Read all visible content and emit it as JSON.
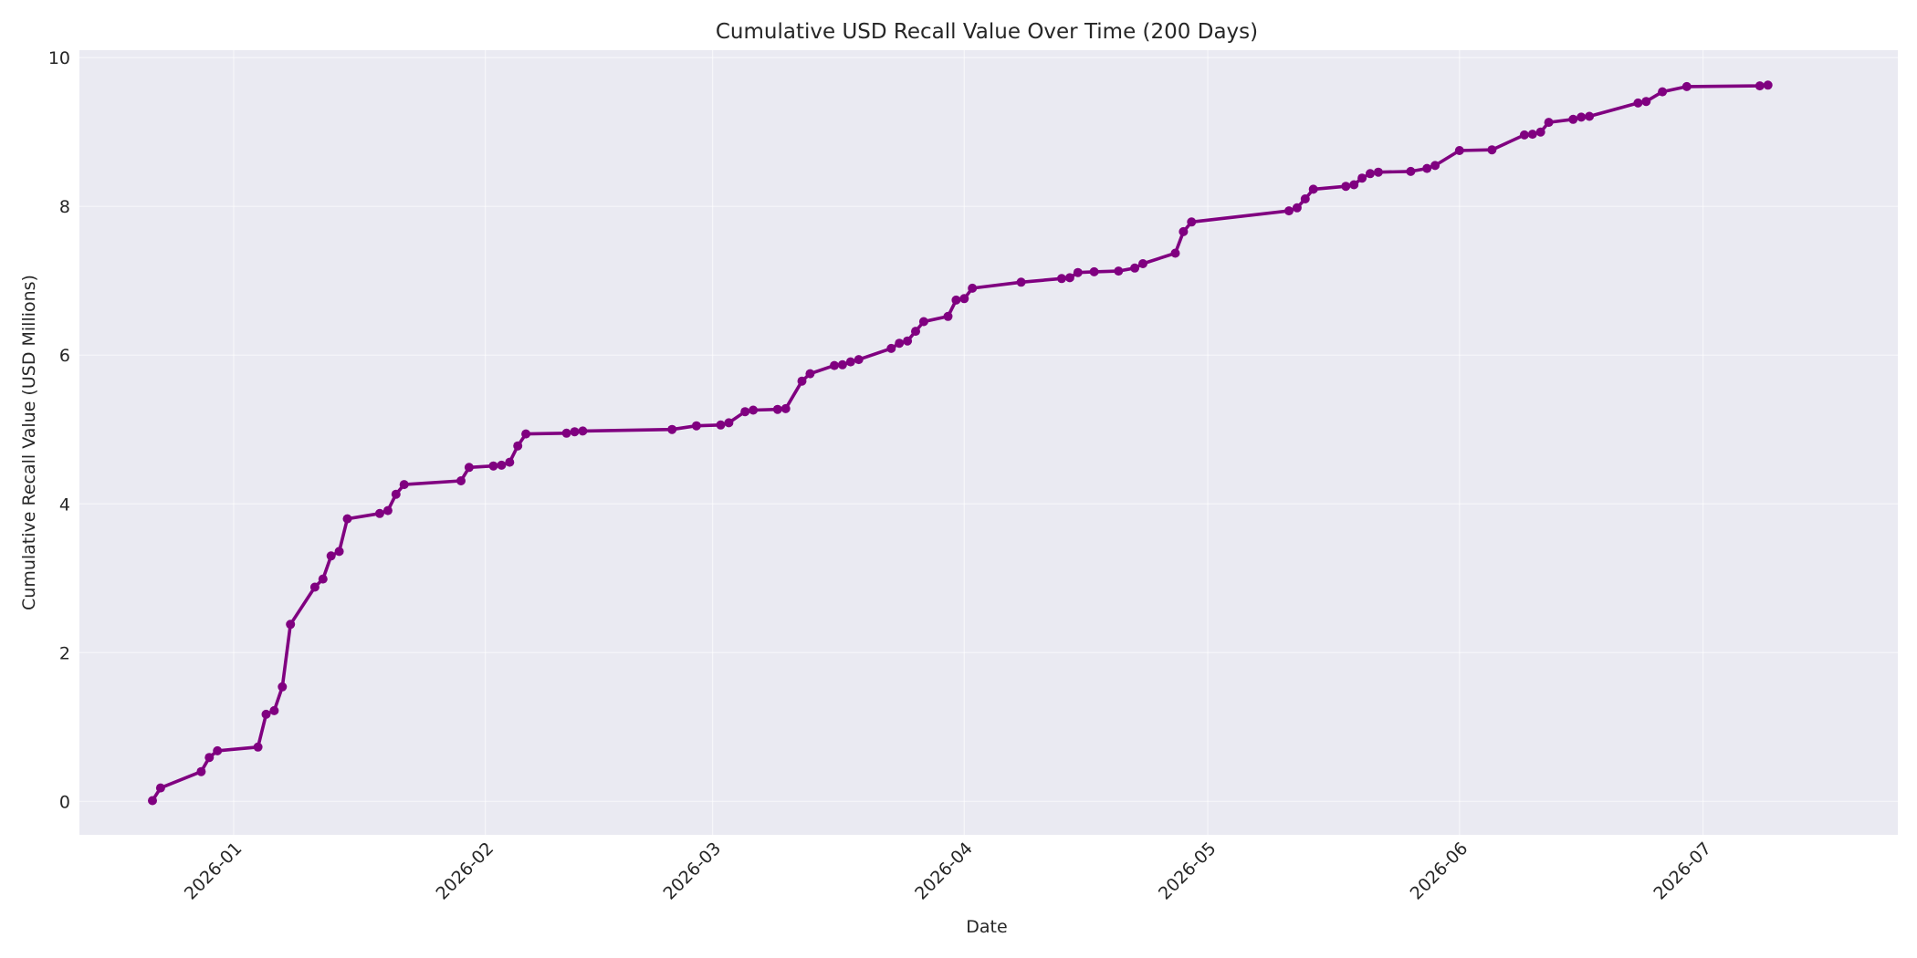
{
  "chart_data": {
    "type": "line",
    "title": "Cumulative USD Recall Value Over Time (200 Days)",
    "xlabel": "Date",
    "ylabel": "Cumulative Recall Value (USD Millions)",
    "xlim": [
      "2025-12-13",
      "2026-07-25"
    ],
    "ylim": [
      -0.45,
      10.1
    ],
    "x_ticks": [
      "2026-01-01",
      "2026-02-01",
      "2026-03-01",
      "2026-04-01",
      "2026-05-01",
      "2026-06-01",
      "2026-07-01"
    ],
    "x_tick_labels": [
      "2026-01",
      "2026-02",
      "2026-03",
      "2026-04",
      "2026-05",
      "2026-06",
      "2026-07"
    ],
    "y_ticks": [
      0,
      2,
      4,
      6,
      8,
      10
    ],
    "y_tick_labels": [
      "0",
      "2",
      "4",
      "6",
      "8",
      "10"
    ],
    "grid": true,
    "colors": {
      "series": "#800080",
      "plot_background": "#EAEAF2",
      "grid": "#FFFFFF"
    },
    "series": [
      {
        "marker": "circle",
        "x": [
          "2025-12-22",
          "2025-12-23",
          "2025-12-28",
          "2025-12-29",
          "2025-12-30",
          "2026-01-04",
          "2026-01-05",
          "2026-01-06",
          "2026-01-07",
          "2026-01-08",
          "2026-01-11",
          "2026-01-12",
          "2026-01-13",
          "2026-01-14",
          "2026-01-15",
          "2026-01-19",
          "2026-01-20",
          "2026-01-21",
          "2026-01-22",
          "2026-01-29",
          "2026-01-30",
          "2026-02-02",
          "2026-02-03",
          "2026-02-04",
          "2026-02-05",
          "2026-02-06",
          "2026-02-11",
          "2026-02-12",
          "2026-02-13",
          "2026-02-24",
          "2026-02-27",
          "2026-03-02",
          "2026-03-03",
          "2026-03-05",
          "2026-03-06",
          "2026-03-09",
          "2026-03-10",
          "2026-03-12",
          "2026-03-13",
          "2026-03-16",
          "2026-03-17",
          "2026-03-18",
          "2026-03-19",
          "2026-03-23",
          "2026-03-24",
          "2026-03-25",
          "2026-03-26",
          "2026-03-27",
          "2026-03-30",
          "2026-03-31",
          "2026-04-01",
          "2026-04-02",
          "2026-04-08",
          "2026-04-13",
          "2026-04-14",
          "2026-04-15",
          "2026-04-17",
          "2026-04-20",
          "2026-04-22",
          "2026-04-23",
          "2026-04-27",
          "2026-04-28",
          "2026-04-29",
          "2026-05-11",
          "2026-05-12",
          "2026-05-13",
          "2026-05-14",
          "2026-05-18",
          "2026-05-19",
          "2026-05-20",
          "2026-05-21",
          "2026-05-22",
          "2026-05-26",
          "2026-05-28",
          "2026-05-29",
          "2026-06-01",
          "2026-06-05",
          "2026-06-09",
          "2026-06-10",
          "2026-06-11",
          "2026-06-12",
          "2026-06-15",
          "2026-06-16",
          "2026-06-17",
          "2026-06-23",
          "2026-06-24",
          "2026-06-26",
          "2026-06-29",
          "2026-07-08",
          "2026-07-09"
        ],
        "y": [
          0.01,
          0.18,
          0.4,
          0.59,
          0.68,
          0.73,
          1.17,
          1.22,
          1.54,
          2.38,
          2.88,
          2.99,
          3.3,
          3.36,
          3.8,
          3.87,
          3.91,
          4.13,
          4.26,
          4.31,
          4.49,
          4.51,
          4.52,
          4.56,
          4.78,
          4.94,
          4.95,
          4.97,
          4.98,
          5.0,
          5.05,
          5.06,
          5.09,
          5.24,
          5.26,
          5.27,
          5.28,
          5.65,
          5.75,
          5.86,
          5.87,
          5.91,
          5.94,
          6.09,
          6.16,
          6.19,
          6.32,
          6.45,
          6.52,
          6.74,
          6.76,
          6.9,
          6.98,
          7.03,
          7.04,
          7.11,
          7.12,
          7.13,
          7.17,
          7.23,
          7.37,
          7.66,
          7.79,
          7.94,
          7.98,
          8.1,
          8.23,
          8.27,
          8.29,
          8.38,
          8.44,
          8.46,
          8.47,
          8.51,
          8.55,
          8.75,
          8.76,
          8.96,
          8.97,
          9.0,
          9.13,
          9.17,
          9.2,
          9.21,
          9.39,
          9.41,
          9.54,
          9.61,
          9.62,
          9.63
        ]
      }
    ]
  }
}
